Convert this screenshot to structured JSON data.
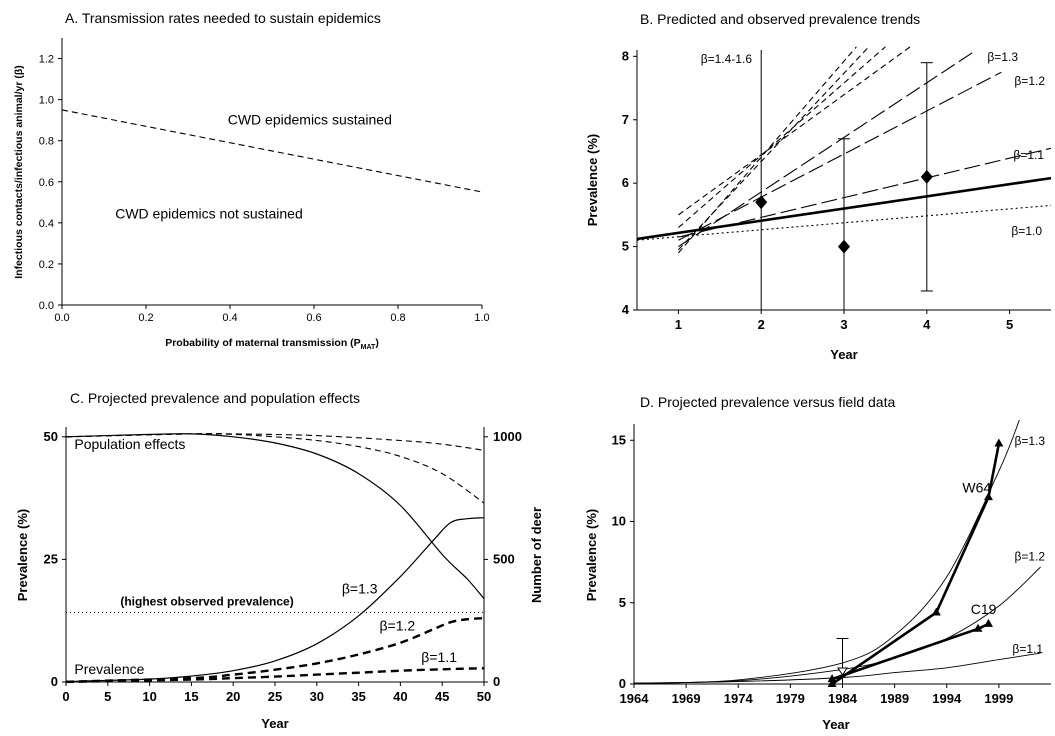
{
  "chart_data": [
    {
      "id": "A",
      "type": "line",
      "title": "A. Transmission rates needed to sustain epidemics",
      "xlabel": "Probability of maternal transmission (P",
      "xlabel_sub": "MAT",
      "xlabel_close": ")",
      "ylabel": "Infectious contacts/infectious animal/yr (β)",
      "xlim": [
        0,
        1
      ],
      "ylim": [
        0,
        1.3
      ],
      "xticks": [
        0,
        0.2,
        0.4,
        0.6,
        0.8,
        1.0
      ],
      "xtick_labels": [
        "0.0",
        "0.2",
        "0.4",
        "0.6",
        "0.8",
        "1.0"
      ],
      "yticks": [
        0,
        0.2,
        0.4,
        0.6,
        0.8,
        1.0,
        1.2
      ],
      "ytick_labels": [
        "0.0",
        "0.2",
        "0.4",
        "0.6",
        "0.8",
        "1.0",
        "1.2"
      ],
      "series": [
        {
          "style": "dashed",
          "points": [
            [
              0,
              0.95
            ],
            [
              1,
              0.55
            ]
          ]
        }
      ],
      "annotations": [
        {
          "text": "CWD epidemics sustained",
          "x": 0.59,
          "y": 0.88
        },
        {
          "text": "CWD epidemics not sustained",
          "x": 0.35,
          "y": 0.42
        }
      ]
    },
    {
      "id": "B",
      "type": "line",
      "title": "B. Predicted and observed prevalence trends",
      "xlabel": "Year",
      "ylabel": "Prevalence (%)",
      "xlim": [
        0.5,
        5.5
      ],
      "ylim": [
        4,
        8.1
      ],
      "xticks": [
        1,
        2,
        3,
        4,
        5
      ],
      "xtick_labels": [
        "1",
        "2",
        "3",
        "4",
        "5"
      ],
      "yticks": [
        4,
        5,
        6,
        7,
        8
      ],
      "ytick_labels": [
        "4",
        "5",
        "6",
        "7",
        "8"
      ],
      "series": [
        {
          "label": "β=1.0",
          "style": "dotted",
          "points": [
            [
              0.5,
              5.1
            ],
            [
              5.5,
              5.65
            ]
          ]
        },
        {
          "label": "β=1.1",
          "style": "longdash",
          "points": [
            [
              1,
              5.15
            ],
            [
              5.5,
              6.55
            ]
          ]
        },
        {
          "label": "β=1.2",
          "style": "longdash",
          "points": [
            [
              1,
              5.1
            ],
            [
              4.9,
              7.75
            ]
          ]
        },
        {
          "label": "β=1.3",
          "style": "longdash",
          "points": [
            [
              1,
              5.0
            ],
            [
              4.6,
              8.1
            ]
          ]
        },
        {
          "label": "β=1.4-1.6",
          "style": "dashed",
          "points": [
            [
              1,
              5.5
            ],
            [
              3.8,
              8.15
            ]
          ]
        },
        {
          "style": "dashed",
          "points": [
            [
              1,
              5.3
            ],
            [
              3.5,
              8.15
            ]
          ]
        },
        {
          "style": "dashed",
          "points": [
            [
              1,
              4.95
            ],
            [
              3.3,
              8.15
            ]
          ]
        },
        {
          "style": "dashed",
          "points": [
            [
              1,
              4.9
            ],
            [
              3.15,
              8.15
            ]
          ]
        },
        {
          "style": "solid-bold",
          "points": [
            [
              0.5,
              5.12
            ],
            [
              5.5,
              6.08
            ]
          ]
        }
      ],
      "observed": [
        {
          "x": 2,
          "y": 5.7,
          "lo": 2.5,
          "hi": 8.1
        },
        {
          "x": 3,
          "y": 5.0,
          "lo": 3.6,
          "hi": 6.7
        },
        {
          "x": 4,
          "y": 6.1,
          "lo": 4.3,
          "hi": 7.9
        }
      ]
    },
    {
      "id": "C",
      "type": "line",
      "title": "C. Projected prevalence and population effects",
      "xlabel": "Year",
      "ylabel": "Prevalence (%)",
      "ylabel_right": "Number of deer",
      "xlim": [
        0,
        50
      ],
      "ylim": [
        0,
        52
      ],
      "ylim_right": [
        0,
        1040
      ],
      "xticks": [
        0,
        5,
        10,
        15,
        20,
        25,
        30,
        35,
        40,
        45,
        50
      ],
      "xtick_labels": [
        "0",
        "5",
        "10",
        "15",
        "20",
        "25",
        "30",
        "35",
        "40",
        "45",
        "50"
      ],
      "yticks": [
        0,
        25,
        50
      ],
      "ytick_labels": [
        "0",
        "25",
        "50"
      ],
      "yticks_right": [
        0,
        500,
        1000
      ],
      "ytick_labels_right": [
        "0",
        "500",
        "1000"
      ],
      "highest_observed_prevalence": 14.2,
      "series": [
        {
          "label": "β=1.3",
          "style": "solid",
          "axis": "left",
          "points": [
            [
              0,
              0.1
            ],
            [
              10,
              0.6
            ],
            [
              15,
              1.2
            ],
            [
              20,
              2.3
            ],
            [
              25,
              4.3
            ],
            [
              30,
              7.8
            ],
            [
              35,
              13.5
            ],
            [
              40,
              21.5
            ],
            [
              44,
              29
            ],
            [
              46,
              32.5
            ],
            [
              48,
              33.3
            ],
            [
              50,
              33.5
            ]
          ]
        },
        {
          "label": "β=1.2",
          "style": "dashed-bold",
          "axis": "left",
          "points": [
            [
              0,
              0.05
            ],
            [
              15,
              0.8
            ],
            [
              20,
              1.5
            ],
            [
              25,
              2.5
            ],
            [
              30,
              3.8
            ],
            [
              35,
              5.6
            ],
            [
              40,
              8
            ],
            [
              44,
              10.8
            ],
            [
              46,
              12.2
            ],
            [
              48,
              12.8
            ],
            [
              50,
              13
            ]
          ]
        },
        {
          "label": "β=1.1",
          "style": "dashed-bold",
          "axis": "left",
          "points": [
            [
              0,
              0.02
            ],
            [
              15,
              0.5
            ],
            [
              20,
              0.8
            ],
            [
              25,
              1.1
            ],
            [
              30,
              1.5
            ],
            [
              35,
              1.9
            ],
            [
              40,
              2.3
            ],
            [
              45,
              2.6
            ],
            [
              50,
              2.8
            ]
          ]
        },
        {
          "style": "solid",
          "axis": "right",
          "points": [
            [
              0,
              1000
            ],
            [
              10,
              1010
            ],
            [
              15,
              1012
            ],
            [
              20,
              1000
            ],
            [
              25,
              975
            ],
            [
              30,
              930
            ],
            [
              35,
              850
            ],
            [
              40,
              720
            ],
            [
              45,
              520
            ],
            [
              48,
              420
            ],
            [
              50,
              340
            ]
          ]
        },
        {
          "style": "dashed",
          "axis": "right",
          "points": [
            [
              0,
              1000
            ],
            [
              15,
              1012
            ],
            [
              20,
              1010
            ],
            [
              25,
              1000
            ],
            [
              30,
              985
            ],
            [
              35,
              960
            ],
            [
              40,
              920
            ],
            [
              45,
              850
            ],
            [
              50,
              730
            ]
          ]
        },
        {
          "style": "dashed",
          "axis": "right",
          "points": [
            [
              0,
              1000
            ],
            [
              15,
              1012
            ],
            [
              20,
              1012
            ],
            [
              30,
              1005
            ],
            [
              40,
              985
            ],
            [
              45,
              970
            ],
            [
              50,
              945
            ]
          ]
        }
      ],
      "annotations": [
        {
          "text": "Population effects",
          "x": 1,
          "y": 47.5
        },
        {
          "text": "Prevalence",
          "x": 1,
          "y": 1.6
        },
        {
          "text": "(highest observed prevalence)",
          "x": 6.5,
          "y": 15.6
        },
        {
          "text": "β=1.3",
          "x": 33,
          "y": 18
        },
        {
          "text": "β=1.2",
          "x": 37.5,
          "y": 10.5
        },
        {
          "text": "β=1.1",
          "x": 42.5,
          "y": 4.1
        }
      ]
    },
    {
      "id": "D",
      "type": "line",
      "title": "D. Projected prevalence versus field data",
      "xlabel": "Year",
      "ylabel": "Prevalence (%)",
      "xlim": [
        1964,
        2004
      ],
      "ylim": [
        0,
        16
      ],
      "xticks": [
        1964,
        1969,
        1974,
        1979,
        1984,
        1989,
        1994,
        1999
      ],
      "xtick_labels": [
        "1964",
        "1969",
        "1974",
        "1979",
        "1984",
        "1989",
        "1994",
        "1999"
      ],
      "yticks": [
        0,
        5,
        10,
        15
      ],
      "ytick_labels": [
        "0",
        "5",
        "10",
        "15"
      ],
      "series": [
        {
          "label": "β=1.3",
          "style": "thin",
          "points": [
            [
              1964,
              0.05
            ],
            [
              1974,
              0.25
            ],
            [
              1984,
              1.3
            ],
            [
              1989,
              3
            ],
            [
              1994,
              6.6
            ],
            [
              1999,
              13.1
            ],
            [
              2001,
              16.3
            ]
          ]
        },
        {
          "label": "β=1.2",
          "style": "thin",
          "points": [
            [
              1964,
              0.05
            ],
            [
              1974,
              0.2
            ],
            [
              1984,
              0.9
            ],
            [
              1989,
              1.6
            ],
            [
              1994,
              2.8
            ],
            [
              1999,
              4.8
            ],
            [
              2003,
              7.2
            ]
          ]
        },
        {
          "label": "β=1.1",
          "style": "thin",
          "points": [
            [
              1964,
              0.05
            ],
            [
              1974,
              0.15
            ],
            [
              1984,
              0.4
            ],
            [
              1989,
              0.7
            ],
            [
              1994,
              1
            ],
            [
              1999,
              1.5
            ],
            [
              2003,
              1.9
            ]
          ]
        },
        {
          "label": "W64",
          "style": "bold-marker",
          "points": [
            [
              1983,
              0
            ],
            [
              1993,
              4.4
            ],
            [
              1998,
              11.5
            ],
            [
              1999,
              14.8
            ]
          ]
        },
        {
          "label": "C19",
          "style": "bold-marker",
          "points": [
            [
              1983,
              0.3
            ],
            [
              1997,
              3.4
            ],
            [
              1998,
              3.7
            ]
          ]
        }
      ],
      "field_point": {
        "x": 1984,
        "y": 0.8,
        "lo": 0,
        "hi": 2.8
      },
      "labels": [
        {
          "text": "W64",
          "x": 1995.5,
          "y": 11.8
        },
        {
          "text": "C19",
          "x": 1996.3,
          "y": 4.3
        },
        {
          "text": "β=1.3",
          "x": 2000.5,
          "y": 14.7
        },
        {
          "text": "β=1.2",
          "x": 2000.5,
          "y": 7.6
        },
        {
          "text": "β=1.1",
          "x": 2000.3,
          "y": 1.9
        }
      ]
    }
  ]
}
